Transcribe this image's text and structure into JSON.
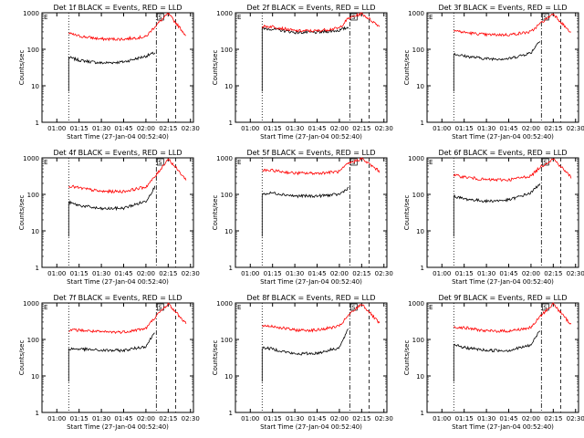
{
  "panel_titles": [
    "Det 1f BLACK = Events, RED = LLD",
    "Det 2f BLACK = Events, RED = LLD",
    "Det 3f BLACK = Events, RED = LLD",
    "Det 4f BLACK = Events, RED = LLD",
    "Det 5f BLACK = Events, RED = LLD",
    "Det 6f BLACK = Events, RED = LLD",
    "Det 7f BLACK = Events, RED = LLD",
    "Det 8f BLACK = Events, RED = LLD",
    "Det 9f BLACK = Events, RED = LLD"
  ],
  "xlabel": "Start Time (27-Jan-04 00:52:40)",
  "ylabel": "Counts/sec",
  "x_ticks": [
    "01:00",
    "01:15",
    "01:30",
    "01:45",
    "02:00",
    "02:15",
    "02:30"
  ],
  "y_ticks": [
    "1",
    "10",
    "100",
    "1000"
  ],
  "marker_labels": [
    "E",
    "S"
  ],
  "colors": {
    "events": "#000000",
    "lld": "#ff0000"
  },
  "chart_data": [
    {
      "type": "line",
      "title": "Det 1f BLACK = Events, RED = LLD",
      "xlabel": "Start Time (27-Jan-04 00:52:40)",
      "ylabel": "Counts/sec",
      "x": [
        "01:00",
        "01:08",
        "01:15",
        "01:30",
        "01:45",
        "02:00",
        "02:06",
        "02:15",
        "02:30"
      ],
      "ylim": [
        1,
        1000
      ],
      "yscale": "log",
      "series": [
        {
          "color": "#000000",
          "values": [
            null,
            60,
            50,
            42,
            45,
            65,
            80,
            null,
            null
          ]
        },
        {
          "color": "#ff0000",
          "values": [
            null,
            270,
            230,
            190,
            190,
            220,
            420,
            950,
            170
          ]
        }
      ]
    },
    {
      "type": "line",
      "title": "Det 2f BLACK = Events, RED = LLD",
      "xlabel": "Start Time (27-Jan-04 00:52:40)",
      "ylabel": "Counts/sec",
      "x": [
        "01:00",
        "01:08",
        "01:15",
        "01:30",
        "01:45",
        "02:00",
        "02:06",
        "02:15",
        "02:30"
      ],
      "ylim": [
        1,
        1000
      ],
      "yscale": "log",
      "series": [
        {
          "color": "#000000",
          "values": [
            null,
            360,
            360,
            290,
            290,
            330,
            400,
            null,
            null
          ]
        },
        {
          "color": "#ff0000",
          "values": [
            null,
            420,
            420,
            320,
            320,
            380,
            700,
            950,
            350
          ]
        }
      ]
    },
    {
      "type": "line",
      "title": "Det 3f BLACK = Events, RED = LLD",
      "xlabel": "Start Time (27-Jan-04 00:52:40)",
      "ylabel": "Counts/sec",
      "x": [
        "01:00",
        "01:08",
        "01:15",
        "01:30",
        "01:45",
        "02:00",
        "02:06",
        "02:15",
        "02:30"
      ],
      "ylim": [
        1,
        1000
      ],
      "yscale": "log",
      "series": [
        {
          "color": "#000000",
          "values": [
            null,
            75,
            65,
            55,
            55,
            80,
            180,
            null,
            null
          ]
        },
        {
          "color": "#ff0000",
          "values": [
            null,
            330,
            290,
            250,
            250,
            300,
            500,
            950,
            200
          ]
        }
      ]
    },
    {
      "type": "line",
      "title": "Det 4f BLACK = Events, RED = LLD",
      "xlabel": "Start Time (27-Jan-04 00:52:40)",
      "ylabel": "Counts/sec",
      "x": [
        "01:00",
        "01:08",
        "01:15",
        "01:30",
        "01:45",
        "02:00",
        "02:06",
        "02:15",
        "02:30"
      ],
      "ylim": [
        1,
        1000
      ],
      "yscale": "log",
      "series": [
        {
          "color": "#000000",
          "values": [
            null,
            60,
            50,
            40,
            42,
            65,
            160,
            null,
            null
          ]
        },
        {
          "color": "#ff0000",
          "values": [
            null,
            170,
            150,
            120,
            120,
            160,
            300,
            950,
            180
          ]
        }
      ]
    },
    {
      "type": "line",
      "title": "Det 5f BLACK = Events, RED = LLD",
      "xlabel": "Start Time (27-Jan-04 00:52:40)",
      "ylabel": "Counts/sec",
      "x": [
        "01:00",
        "01:08",
        "01:15",
        "01:30",
        "01:45",
        "02:00",
        "02:06",
        "02:15",
        "02:30"
      ],
      "ylim": [
        1,
        1000
      ],
      "yscale": "log",
      "series": [
        {
          "color": "#000000",
          "values": [
            null,
            100,
            110,
            90,
            90,
            100,
            150,
            null,
            null
          ]
        },
        {
          "color": "#ff0000",
          "values": [
            null,
            450,
            450,
            380,
            380,
            420,
            700,
            950,
            350
          ]
        }
      ]
    },
    {
      "type": "line",
      "title": "Det 6f BLACK = Events, RED = LLD",
      "xlabel": "Start Time (27-Jan-04 00:52:40)",
      "ylabel": "Counts/sec",
      "x": [
        "01:00",
        "01:08",
        "01:15",
        "01:30",
        "01:45",
        "02:00",
        "02:06",
        "02:15",
        "02:30"
      ],
      "ylim": [
        1,
        1000
      ],
      "yscale": "log",
      "series": [
        {
          "color": "#000000",
          "values": [
            null,
            90,
            75,
            65,
            70,
            110,
            200,
            null,
            null
          ]
        },
        {
          "color": "#ff0000",
          "values": [
            null,
            330,
            300,
            250,
            250,
            320,
            550,
            950,
            220
          ]
        }
      ]
    },
    {
      "type": "line",
      "title": "Det 7f BLACK = Events, RED = LLD",
      "xlabel": "Start Time (27-Jan-04 00:52:40)",
      "ylabel": "Counts/sec",
      "x": [
        "01:00",
        "01:08",
        "01:15",
        "01:30",
        "01:45",
        "02:00",
        "02:06",
        "02:15",
        "02:30"
      ],
      "ylim": [
        1,
        1000
      ],
      "yscale": "log",
      "series": [
        {
          "color": "#000000",
          "values": [
            null,
            55,
            55,
            50,
            50,
            65,
            160,
            null,
            null
          ]
        },
        {
          "color": "#ff0000",
          "values": [
            null,
            180,
            180,
            160,
            160,
            200,
            400,
            950,
            200
          ]
        }
      ]
    },
    {
      "type": "line",
      "title": "Det 8f BLACK = Events, RED = LLD",
      "xlabel": "Start Time (27-Jan-04 00:52:40)",
      "ylabel": "Counts/sec",
      "x": [
        "01:00",
        "01:08",
        "01:15",
        "01:30",
        "01:45",
        "02:00",
        "02:06",
        "02:15",
        "02:30"
      ],
      "ylim": [
        1,
        1000
      ],
      "yscale": "log",
      "series": [
        {
          "color": "#000000",
          "values": [
            null,
            60,
            55,
            40,
            42,
            60,
            190,
            null,
            null
          ]
        },
        {
          "color": "#ff0000",
          "values": [
            null,
            240,
            230,
            180,
            180,
            230,
            450,
            950,
            200
          ]
        }
      ]
    },
    {
      "type": "line",
      "title": "Det 9f BLACK = Events, RED = LLD",
      "xlabel": "Start Time (27-Jan-04 00:52:40)",
      "ylabel": "Counts/sec",
      "x": [
        "01:00",
        "01:08",
        "01:15",
        "01:30",
        "01:45",
        "02:00",
        "02:06",
        "02:15",
        "02:30"
      ],
      "ylim": [
        1,
        1000
      ],
      "yscale": "log",
      "series": [
        {
          "color": "#000000",
          "values": [
            null,
            70,
            60,
            50,
            50,
            70,
            180,
            null,
            null
          ]
        },
        {
          "color": "#ff0000",
          "values": [
            null,
            220,
            210,
            170,
            170,
            210,
            420,
            950,
            180
          ]
        }
      ]
    }
  ]
}
